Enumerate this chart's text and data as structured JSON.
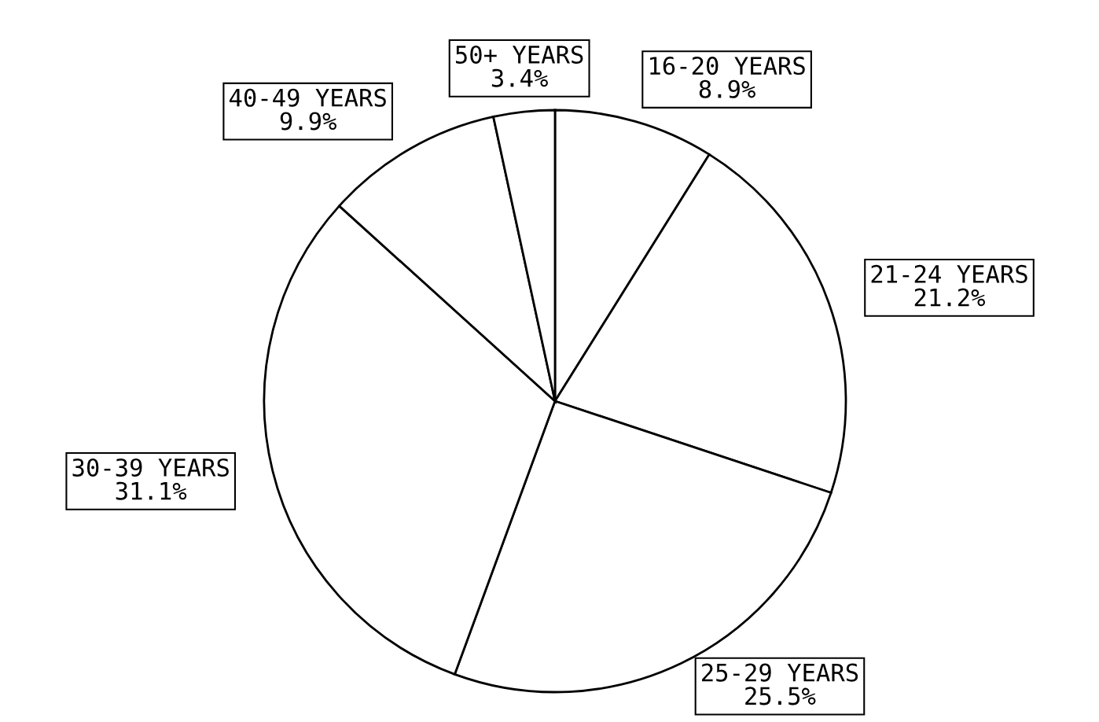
{
  "chart_data": {
    "type": "pie",
    "categories": [
      "16-20 YEARS",
      "21-24 YEARS",
      "25-29 YEARS",
      "30-39 YEARS",
      "40-49 YEARS",
      "50+ YEARS"
    ],
    "values": [
      8.9,
      21.2,
      25.5,
      31.1,
      9.9,
      3.4
    ],
    "value_labels": [
      "8.9%",
      "21.2%",
      "25.5%",
      "31.1%",
      "9.9%",
      "3.4%"
    ],
    "colors": [
      "#ffffff",
      "#ffffff",
      "#ffffff",
      "#ffffff",
      "#ffffff",
      "#ffffff"
    ]
  }
}
